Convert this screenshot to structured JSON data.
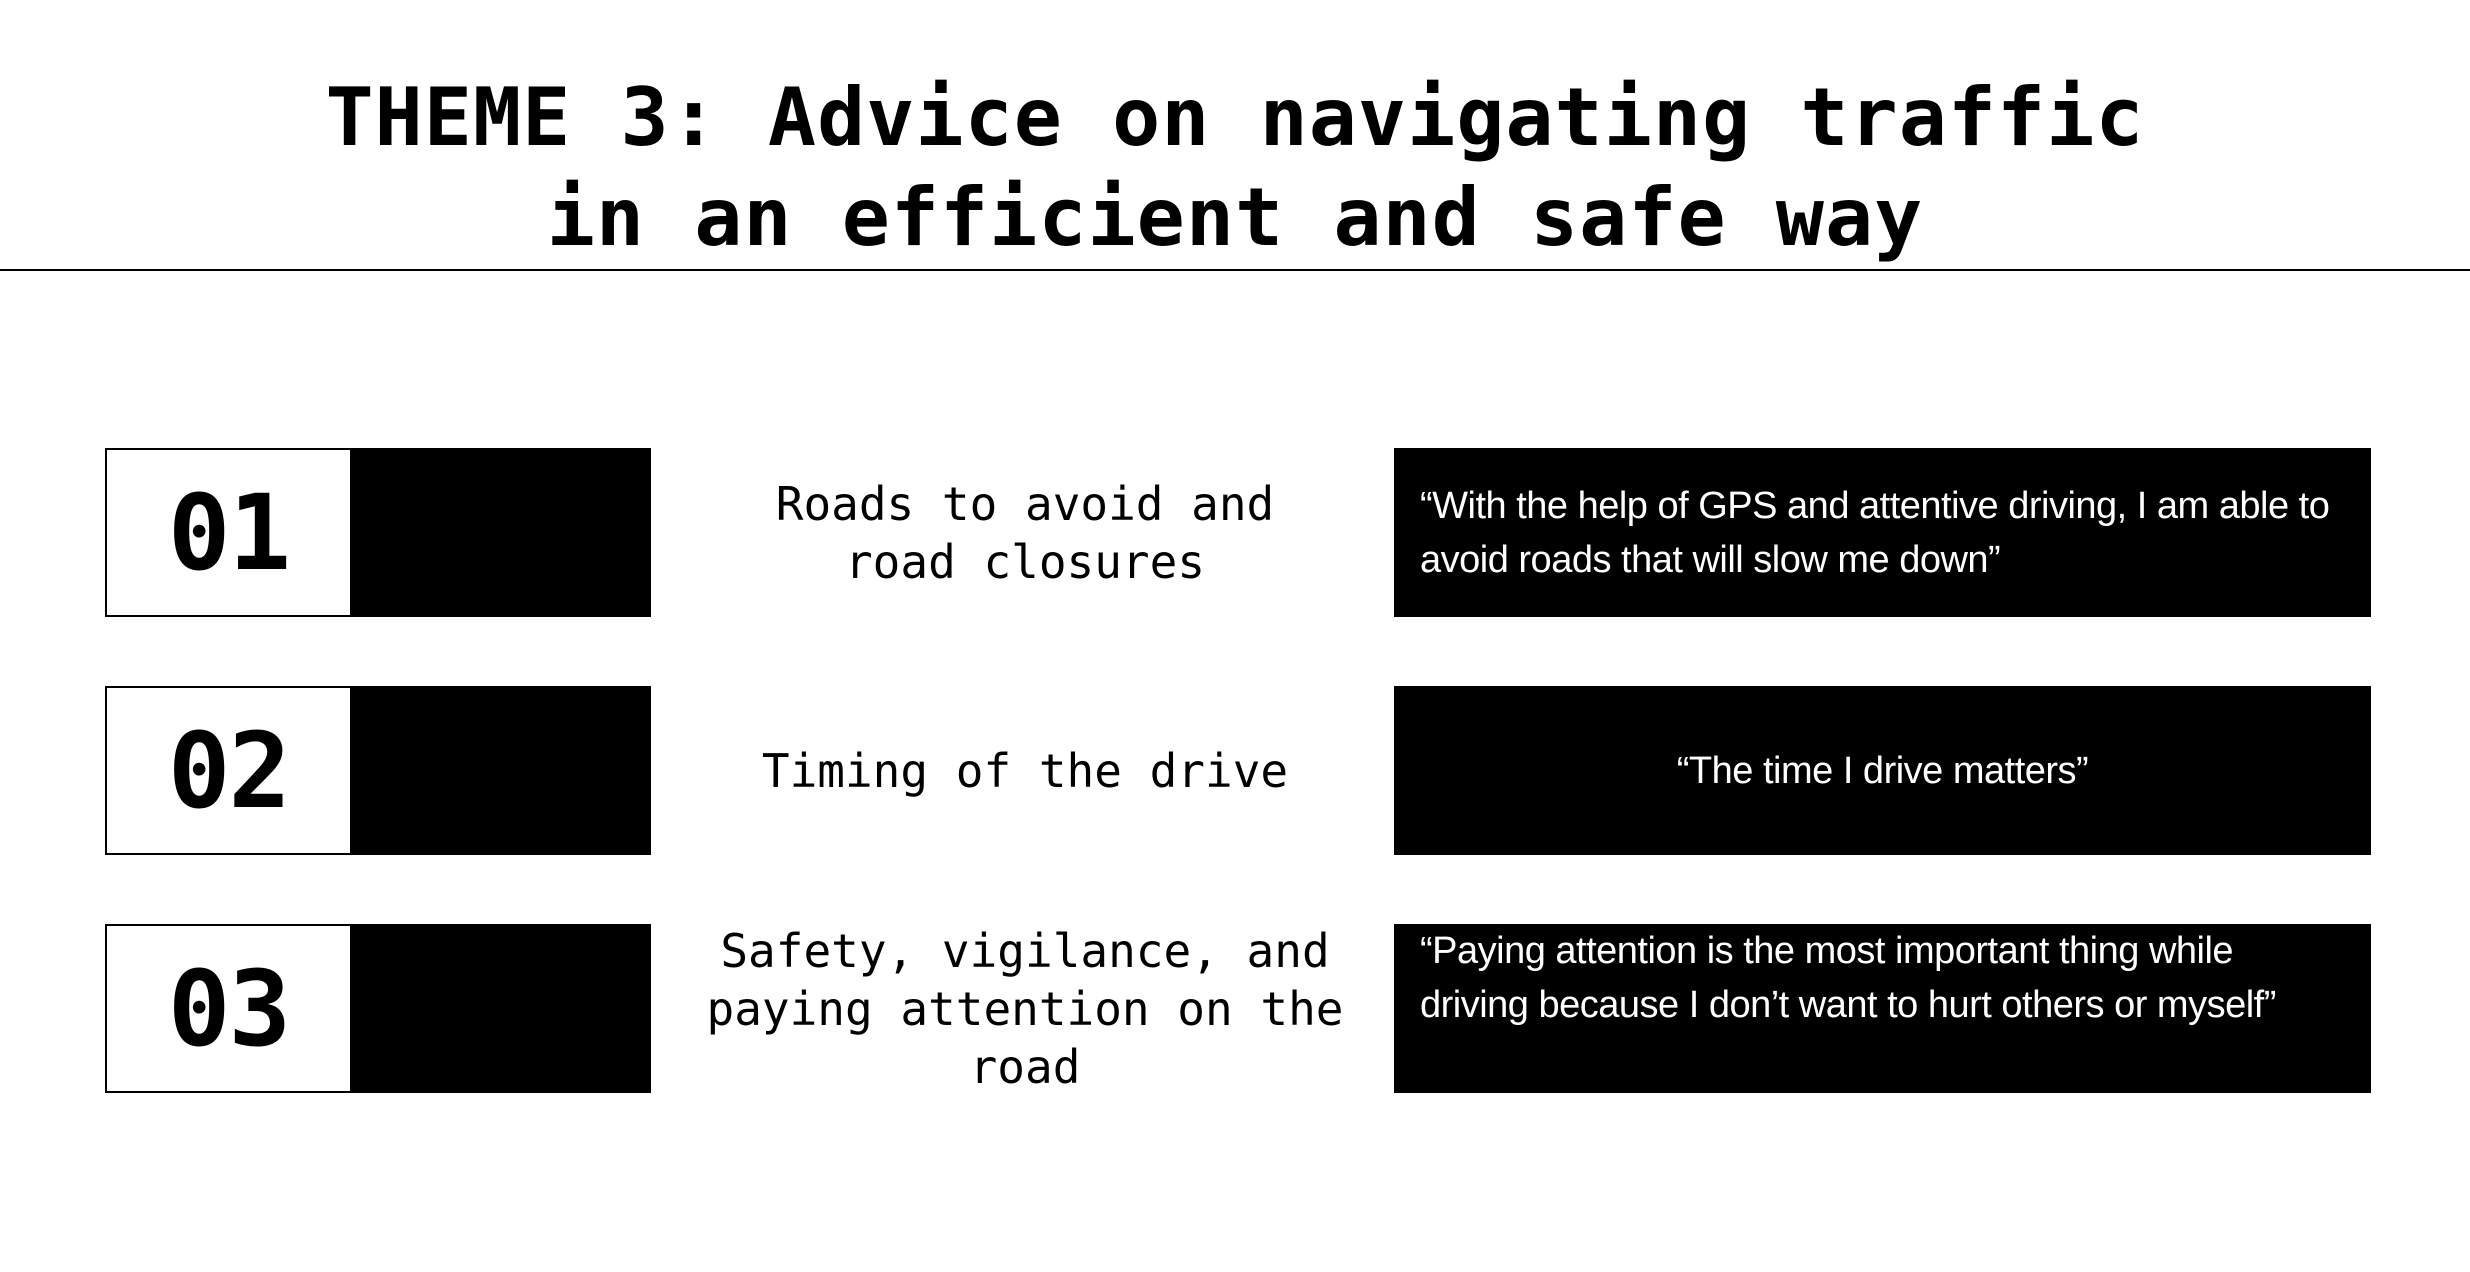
{
  "title": {
    "line1": "THEME 3: Advice on navigating traffic",
    "line2": "in an efficient and safe way"
  },
  "rows": [
    {
      "number": "01",
      "topic": "Roads to avoid and road closures",
      "quote": "“With the help of GPS and attentive driving, I am able to avoid roads that will slow me down”"
    },
    {
      "number": "02",
      "topic": "Timing of the drive",
      "quote": "“The time I drive matters”"
    },
    {
      "number": "03",
      "topic": "Safety, vigilance, and paying attention on the road",
      "quote": "“Paying attention is the most important thing while driving because I don’t want to hurt others or myself”"
    }
  ],
  "colors": {
    "background": "#ffffff",
    "ink": "#000000",
    "quote_text": "#ffffff"
  }
}
